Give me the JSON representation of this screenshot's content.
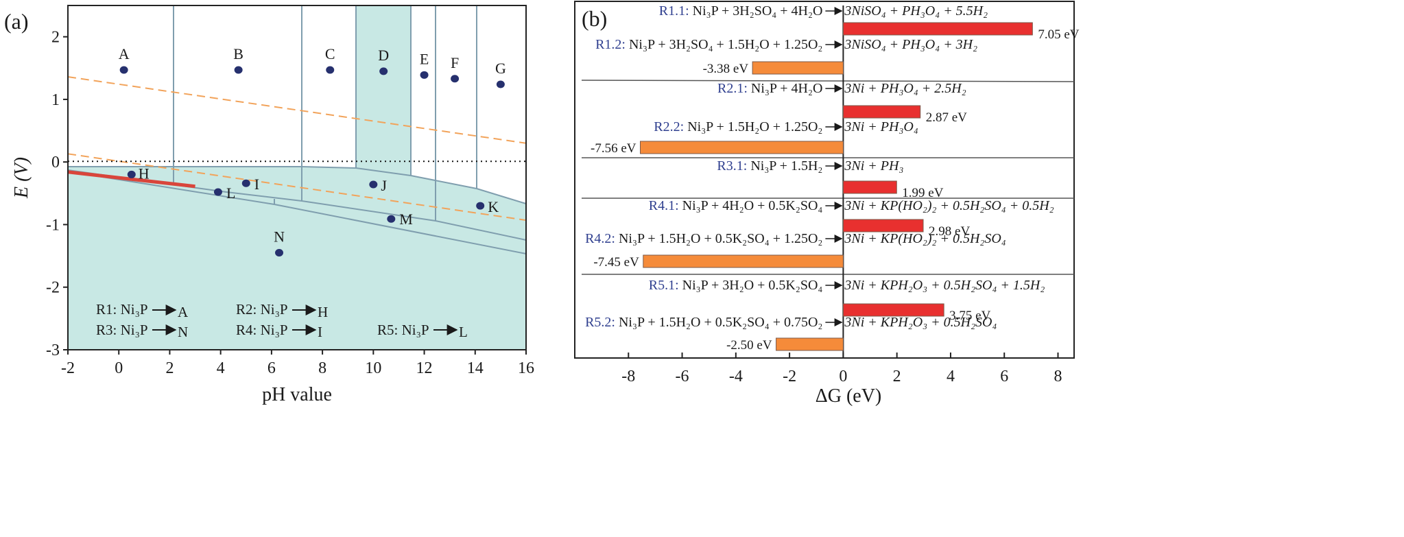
{
  "panel_a": {
    "label": "(a)",
    "legend": [
      {
        "from": "R1: Ni₃P",
        "to": "A"
      },
      {
        "from": "R2: Ni₃P",
        "to": "H"
      },
      {
        "from": "R3: Ni₃P",
        "to": "N"
      },
      {
        "from": "R4: Ni₃P",
        "to": "I"
      },
      {
        "from": "R5: Ni₃P",
        "to": "L"
      }
    ]
  },
  "panel_b": {
    "label": "(b)",
    "reactions": [
      {
        "id": "R1.1:",
        "lhs": "Ni₃P + 3H₂SO₄ + 4H₂O",
        "rhs": "3NiSO₄ + PH₃O₄ + 5.5H₂",
        "value_label": "7.05 eV"
      },
      {
        "id": "R1.2:",
        "lhs": "Ni₃P + 3H₂SO₄ + 1.5H₂O + 1.25O₂",
        "rhs": "3NiSO₄ + PH₃O₄ + 3H₂",
        "value_label": "-3.38 eV"
      },
      {
        "id": "R2.1:",
        "lhs": "Ni₃P + 4H₂O",
        "rhs": "3Ni + PH₃O₄ + 2.5H₂",
        "value_label": "2.87 eV"
      },
      {
        "id": "R2.2:",
        "lhs": "Ni₃P + 1.5H₂O + 1.25O₂",
        "rhs": "3Ni + PH₃O₄",
        "value_label": "-7.56 eV"
      },
      {
        "id": "R3.1:",
        "lhs": "Ni₃P + 1.5H₂",
        "rhs": "3Ni + PH₃",
        "value_label": "1.99 eV"
      },
      {
        "id": "R4.1:",
        "lhs": "Ni₃P + 4H₂O + 0.5K₂SO₄",
        "rhs": "3Ni + KP(HO₂)₂ + 0.5H₂SO₄ + 0.5H₂",
        "value_label": "2.98 eV"
      },
      {
        "id": "R4.2:",
        "lhs": "Ni₃P + 1.5H₂O + 0.5K₂SO₄ + 1.25O₂",
        "rhs": "3Ni + KP(HO₂)₂ + 0.5H₂SO₄",
        "value_label": "-7.45 eV"
      },
      {
        "id": "R5.1:",
        "lhs": "Ni₃P + 3H₂O + 0.5K₂SO₄",
        "rhs": "3Ni + KPH₂O₃ + 0.5H₂SO₄ + 1.5H₂",
        "value_label": "3.75 eV"
      },
      {
        "id": "R5.2:",
        "lhs": "Ni₃P + 1.5H₂O + 0.5K₂SO₄ + 0.75O₂",
        "rhs": "3Ni + KPH₂O₃ + 0.5H₂SO₄",
        "value_label": "-2.50 eV"
      }
    ]
  },
  "chart_data": [
    {
      "type": "scatter",
      "title": "",
      "xlabel": "pH value",
      "ylabel": "E (V)",
      "xlim": [
        -2,
        16
      ],
      "ylim": [
        -3,
        2.5
      ],
      "xticks": [
        -2,
        0,
        2,
        4,
        6,
        8,
        10,
        12,
        14,
        16
      ],
      "yticks": [
        -3,
        -2,
        -1,
        0,
        1,
        2
      ],
      "points": [
        {
          "name": "A",
          "x": 0.2,
          "y": 1.47
        },
        {
          "name": "B",
          "x": 4.7,
          "y": 1.47
        },
        {
          "name": "C",
          "x": 8.3,
          "y": 1.47
        },
        {
          "name": "D",
          "x": 10.4,
          "y": 1.45
        },
        {
          "name": "E",
          "x": 12.0,
          "y": 1.39
        },
        {
          "name": "F",
          "x": 13.2,
          "y": 1.33
        },
        {
          "name": "G",
          "x": 15.0,
          "y": 1.24
        },
        {
          "name": "H",
          "x": 0.5,
          "y": -0.2
        },
        {
          "name": "I",
          "x": 5.0,
          "y": -0.34
        },
        {
          "name": "J",
          "x": 10.0,
          "y": -0.36
        },
        {
          "name": "K",
          "x": 14.2,
          "y": -0.7
        },
        {
          "name": "L",
          "x": 3.9,
          "y": -0.48
        },
        {
          "name": "M",
          "x": 10.7,
          "y": -0.91
        },
        {
          "name": "N",
          "x": 6.3,
          "y": -1.45
        }
      ],
      "lines": [
        {
          "style": "dashed",
          "color": "#f2a35a",
          "x": [
            -2,
            16
          ],
          "y": [
            1.36,
            0.3
          ]
        },
        {
          "style": "dashed",
          "color": "#f2a35a",
          "x": [
            -2,
            16
          ],
          "y": [
            0.13,
            -0.93
          ]
        },
        {
          "style": "dotted",
          "color": "#111111",
          "x": [
            -2,
            16
          ],
          "y": [
            0.01,
            0.01
          ]
        },
        {
          "style": "solid",
          "color": "#d9453b",
          "x": [
            -2,
            3.0
          ],
          "y": [
            -0.16,
            -0.39
          ]
        }
      ],
      "colors": {
        "region": "#c8e8e4",
        "boundary": "#7f9eae",
        "point": "#26306e"
      }
    },
    {
      "type": "bar",
      "orientation": "horizontal",
      "xlabel": "ΔG (eV)",
      "xlim": [
        -10,
        8.6
      ],
      "xticks": [
        -8,
        -6,
        -4,
        -2,
        0,
        2,
        4,
        6,
        8
      ],
      "categories": [
        "R1.1",
        "R1.2",
        "R2.1",
        "R2.2",
        "R3.1",
        "R4.1",
        "R4.2",
        "R5.1",
        "R5.2"
      ],
      "values": [
        7.05,
        -3.38,
        2.87,
        -7.56,
        1.99,
        2.98,
        -7.45,
        3.75,
        -2.5
      ],
      "colors": {
        "positive": "#e8302f",
        "negative": "#f58b3a"
      }
    }
  ]
}
